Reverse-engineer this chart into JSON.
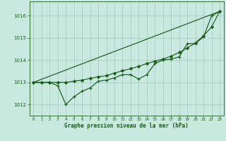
{
  "title": "Graphe pression niveau de la mer (hPa)",
  "bg_color": "#c8e8e0",
  "grid_color": "#a0c8c0",
  "line_color": "#1a5c1a",
  "xlim": [
    -0.5,
    23.5
  ],
  "ylim": [
    1011.5,
    1016.65
  ],
  "yticks": [
    1012,
    1013,
    1014,
    1015,
    1016
  ],
  "xticks": [
    0,
    1,
    2,
    3,
    4,
    5,
    6,
    7,
    8,
    9,
    10,
    11,
    12,
    13,
    14,
    15,
    16,
    17,
    18,
    19,
    20,
    21,
    22,
    23
  ],
  "hourly_x": [
    0,
    1,
    2,
    3,
    4,
    5,
    6,
    7,
    8,
    9,
    10,
    11,
    12,
    13,
    14,
    15,
    16,
    17,
    18,
    19,
    20,
    21,
    22,
    23
  ],
  "hourly_y": [
    1013.0,
    1013.0,
    1013.0,
    1012.85,
    1012.0,
    1012.35,
    1012.6,
    1012.75,
    1013.05,
    1013.1,
    1013.2,
    1013.35,
    1013.35,
    1013.15,
    1013.35,
    1013.85,
    1014.0,
    1014.05,
    1014.15,
    1014.75,
    1014.75,
    1015.05,
    1016.0,
    1016.2
  ],
  "trend_x": [
    0,
    23
  ],
  "trend_y": [
    1013.0,
    1016.2
  ],
  "smooth_x": [
    0,
    1,
    2,
    3,
    4,
    5,
    6,
    7,
    8,
    9,
    10,
    11,
    12,
    13,
    14,
    15,
    16,
    17,
    18,
    19,
    20,
    21,
    22,
    23
  ],
  "smooth_y": [
    1013.0,
    1013.0,
    1013.0,
    1013.0,
    1013.0,
    1013.05,
    1013.1,
    1013.18,
    1013.25,
    1013.3,
    1013.42,
    1013.52,
    1013.62,
    1013.72,
    1013.85,
    1013.95,
    1014.05,
    1014.18,
    1014.35,
    1014.55,
    1014.78,
    1015.1,
    1015.5,
    1016.2
  ]
}
